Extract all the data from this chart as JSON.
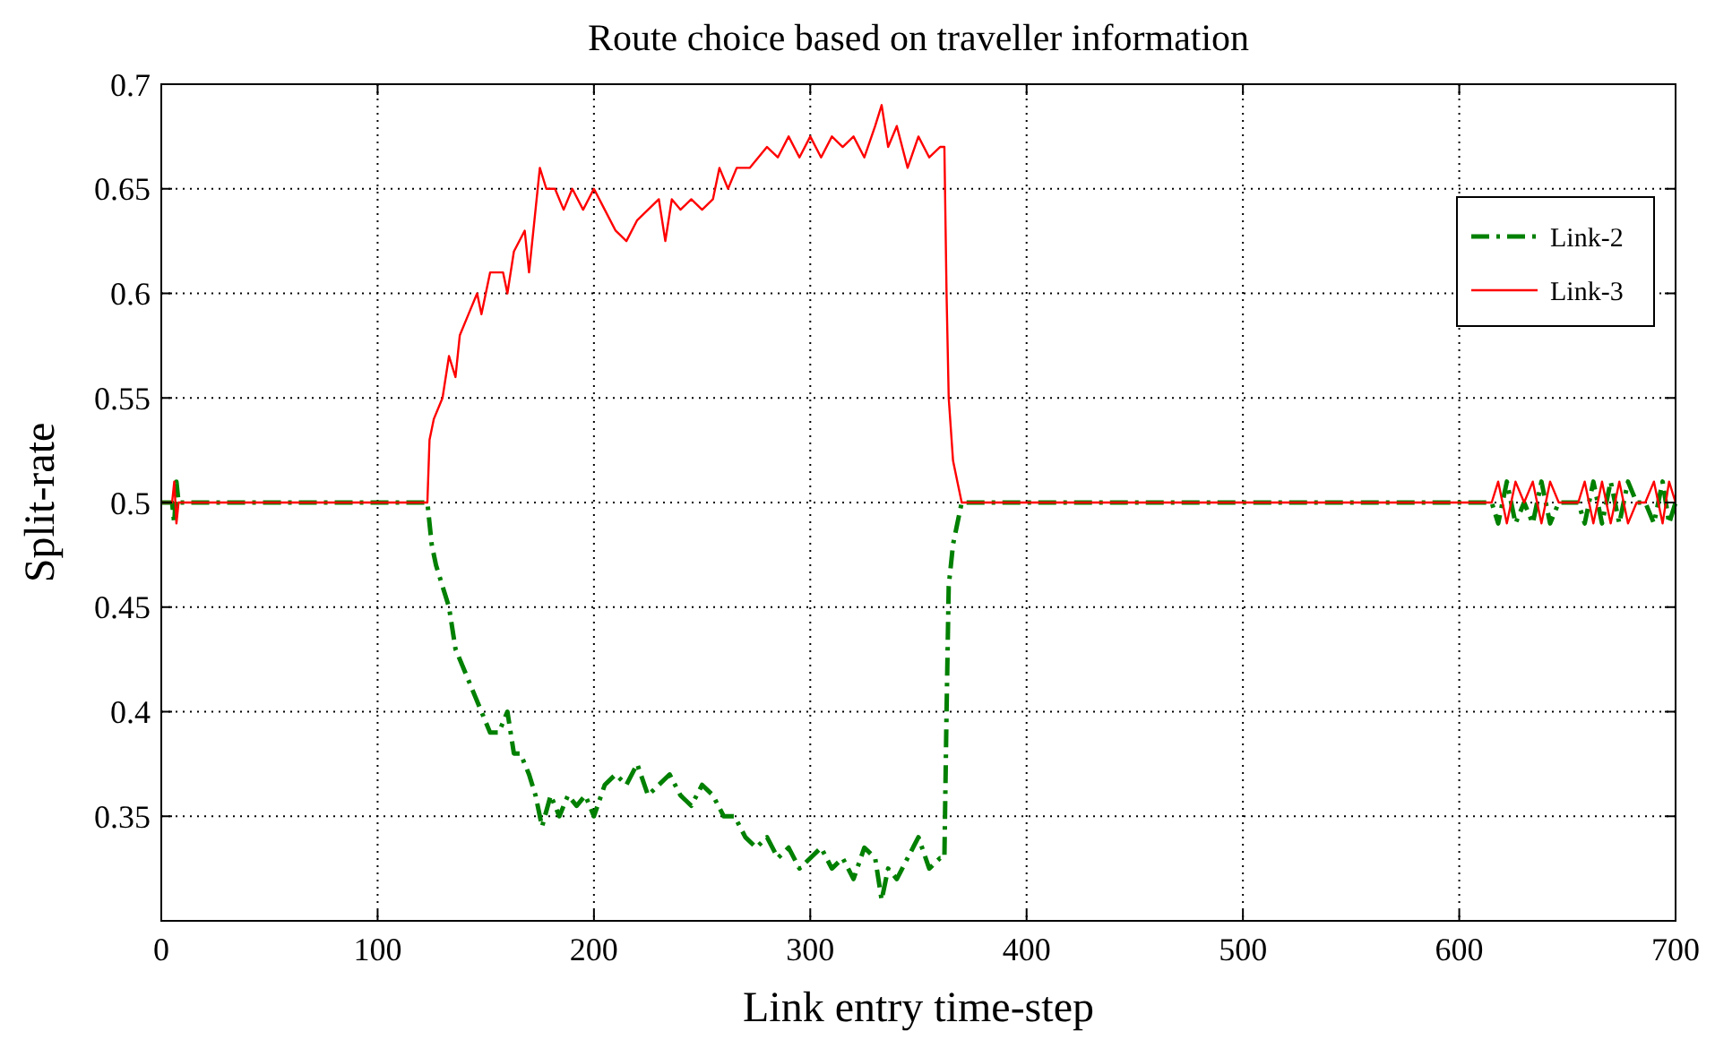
{
  "chart_data": {
    "type": "line",
    "title": "Route choice based on traveller information",
    "xlabel": "Link entry time-step",
    "ylabel": "Split-rate",
    "xlim": [
      0,
      700
    ],
    "xticks": [
      0,
      100,
      200,
      300,
      400,
      500,
      600,
      700
    ],
    "ylim": [
      0.3,
      0.7
    ],
    "yticks": [
      0.35,
      0.4,
      0.45,
      0.5,
      0.55,
      0.6,
      0.65,
      0.7
    ],
    "grid": true,
    "legend": "top right",
    "series": [
      {
        "name": "Link-2",
        "color": "#008000",
        "line_style": "dashed",
        "x": [
          0,
          5,
          6,
          7,
          8,
          123,
          125,
          127,
          130,
          133,
          136,
          140,
          144,
          148,
          152,
          156,
          160,
          163,
          166,
          170,
          173,
          176,
          180,
          184,
          188,
          192,
          196,
          200,
          205,
          210,
          215,
          220,
          225,
          230,
          235,
          240,
          245,
          250,
          255,
          260,
          265,
          270,
          275,
          280,
          285,
          290,
          295,
          300,
          305,
          310,
          315,
          320,
          325,
          330,
          333,
          336,
          340,
          345,
          350,
          355,
          360,
          362,
          363,
          364,
          366,
          368,
          370,
          615,
          618,
          622,
          626,
          630,
          634,
          638,
          642,
          646,
          655,
          658,
          662,
          666,
          670,
          674,
          678,
          682,
          686,
          690,
          694,
          697,
          700
        ],
        "values": [
          0.5,
          0.5,
          0.49,
          0.51,
          0.5,
          0.5,
          0.48,
          0.47,
          0.46,
          0.45,
          0.43,
          0.42,
          0.41,
          0.4,
          0.39,
          0.39,
          0.4,
          0.38,
          0.38,
          0.37,
          0.36,
          0.345,
          0.36,
          0.35,
          0.36,
          0.355,
          0.36,
          0.35,
          0.365,
          0.37,
          0.365,
          0.375,
          0.36,
          0.365,
          0.37,
          0.36,
          0.355,
          0.365,
          0.36,
          0.35,
          0.35,
          0.34,
          0.335,
          0.34,
          0.33,
          0.335,
          0.325,
          0.33,
          0.335,
          0.325,
          0.33,
          0.32,
          0.335,
          0.33,
          0.31,
          0.325,
          0.32,
          0.33,
          0.34,
          0.325,
          0.33,
          0.33,
          0.4,
          0.46,
          0.48,
          0.49,
          0.5,
          0.5,
          0.49,
          0.51,
          0.49,
          0.5,
          0.49,
          0.51,
          0.49,
          0.5,
          0.5,
          0.49,
          0.51,
          0.49,
          0.51,
          0.49,
          0.51,
          0.5,
          0.5,
          0.49,
          0.51,
          0.49,
          0.5
        ]
      },
      {
        "name": "Link-3",
        "color": "#ff0000",
        "line_style": "solid",
        "x": [
          0,
          5,
          6,
          7,
          8,
          123,
          124,
          126,
          130,
          133,
          136,
          138,
          142,
          146,
          148,
          152,
          158,
          160,
          163,
          168,
          170,
          173,
          175,
          178,
          182,
          186,
          190,
          195,
          200,
          205,
          210,
          215,
          220,
          225,
          230,
          233,
          236,
          240,
          245,
          250,
          255,
          258,
          262,
          266,
          272,
          276,
          280,
          285,
          290,
          295,
          300,
          305,
          310,
          315,
          320,
          325,
          330,
          333,
          336,
          340,
          345,
          350,
          355,
          360,
          362,
          363,
          364,
          366,
          368,
          370,
          615,
          618,
          622,
          626,
          630,
          634,
          638,
          642,
          646,
          655,
          658,
          662,
          666,
          670,
          674,
          678,
          682,
          686,
          690,
          694,
          697,
          700
        ],
        "values": [
          0.5,
          0.5,
          0.51,
          0.49,
          0.5,
          0.5,
          0.53,
          0.54,
          0.55,
          0.57,
          0.56,
          0.58,
          0.59,
          0.6,
          0.59,
          0.61,
          0.61,
          0.6,
          0.62,
          0.63,
          0.61,
          0.64,
          0.66,
          0.65,
          0.65,
          0.64,
          0.65,
          0.64,
          0.65,
          0.64,
          0.63,
          0.625,
          0.635,
          0.64,
          0.645,
          0.625,
          0.645,
          0.64,
          0.645,
          0.64,
          0.645,
          0.66,
          0.65,
          0.66,
          0.66,
          0.665,
          0.67,
          0.665,
          0.675,
          0.665,
          0.675,
          0.665,
          0.675,
          0.67,
          0.675,
          0.665,
          0.68,
          0.69,
          0.67,
          0.68,
          0.66,
          0.675,
          0.665,
          0.67,
          0.67,
          0.6,
          0.55,
          0.52,
          0.51,
          0.5,
          0.5,
          0.51,
          0.49,
          0.51,
          0.5,
          0.51,
          0.49,
          0.51,
          0.5,
          0.5,
          0.51,
          0.49,
          0.51,
          0.49,
          0.51,
          0.49,
          0.5,
          0.5,
          0.51,
          0.49,
          0.51,
          0.5
        ]
      }
    ]
  }
}
